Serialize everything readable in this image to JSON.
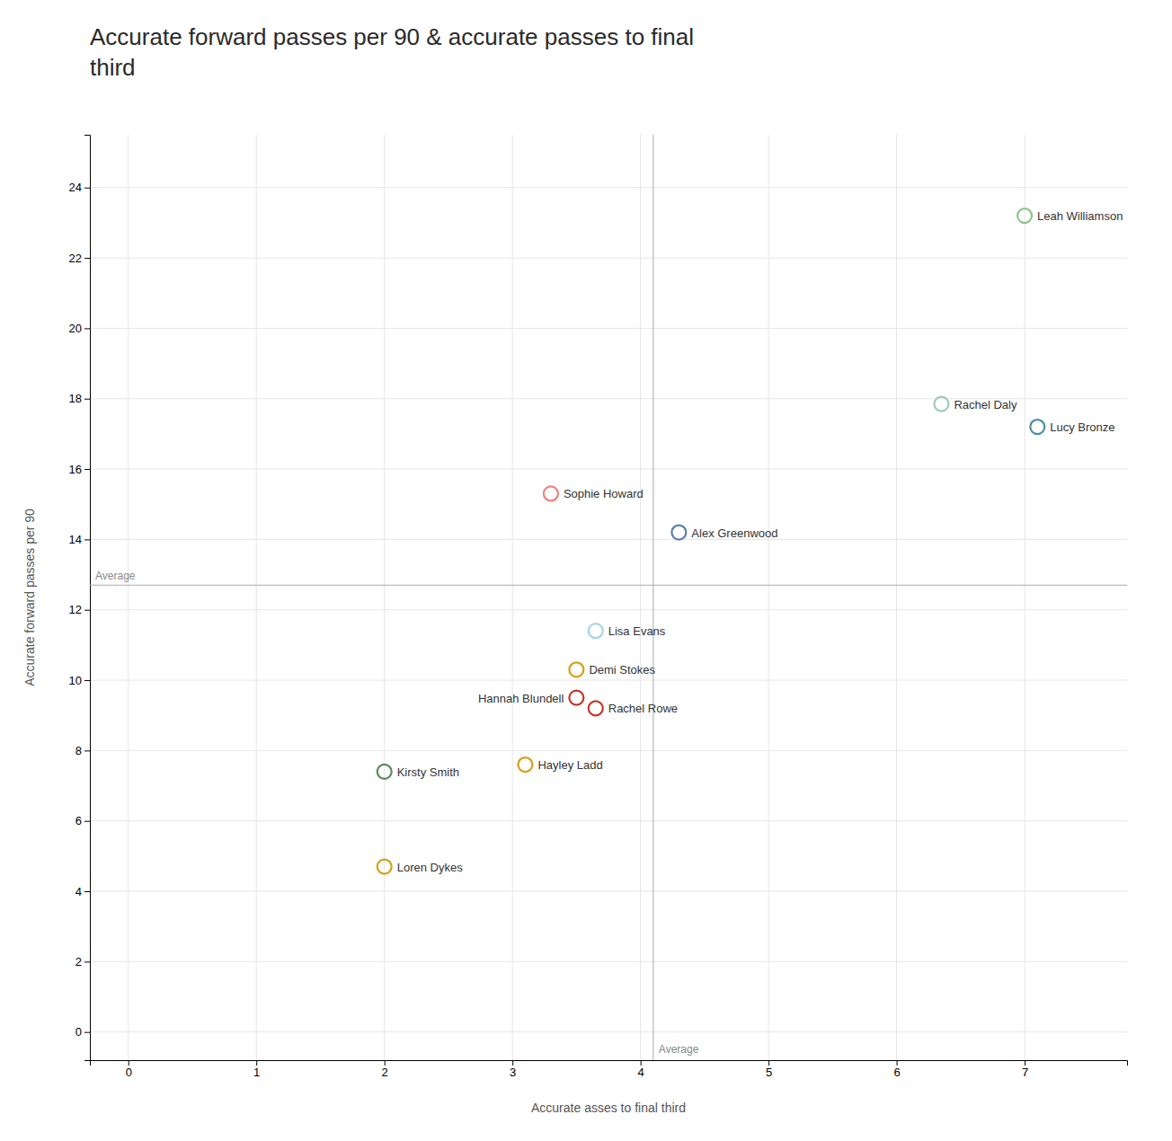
{
  "chart_data": {
    "type": "scatter",
    "title": "Accurate forward passes per 90 & accurate passes to final\nthird",
    "xlabel": "Accurate asses to final third",
    "ylabel": "Accurate forward passes per 90",
    "xlim": [
      -0.3,
      7.8
    ],
    "ylim": [
      -0.8,
      25.5
    ],
    "xticks": [
      0,
      1,
      2,
      3,
      4,
      5,
      6,
      7
    ],
    "yticks": [
      0,
      2,
      4,
      6,
      8,
      10,
      12,
      14,
      16,
      18,
      20,
      22,
      24
    ],
    "grid": true,
    "x": [
      7.0,
      6.35,
      7.1,
      3.3,
      4.3,
      3.65,
      3.5,
      3.5,
      3.65,
      3.1,
      2.0,
      2.0
    ],
    "values": [
      23.2,
      17.85,
      17.2,
      15.3,
      14.2,
      11.4,
      10.3,
      9.5,
      9.2,
      7.6,
      7.4,
      4.7
    ],
    "point_labels": [
      "Leah Williamson",
      "Rachel Daly",
      "Lucy Bronze",
      "Sophie Howard",
      "Alex Greenwood",
      "Lisa Evans",
      "Demi Stokes",
      "Hannah Blundell",
      "Rachel Rowe",
      "Hayley Ladd",
      "Kirsty Smith",
      "Loren Dykes"
    ],
    "colors": [
      "#8dc48d",
      "#9ec9b8",
      "#4a8fa0",
      "#f08080",
      "#5b7fad",
      "#a8d4e8",
      "#d4a017",
      "#c0392b",
      "#c0392b",
      "#d4a017",
      "#5a8a5a",
      "#d4a017"
    ],
    "marker": "circle",
    "annotations": [
      {
        "text": "Average",
        "axis": "x",
        "value": 4.1
      },
      {
        "text": "Average",
        "axis": "y",
        "value": 12.7
      }
    ]
  }
}
